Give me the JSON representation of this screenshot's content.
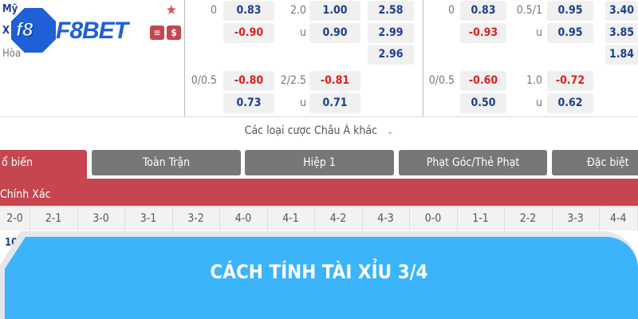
{
  "match": {
    "team1": "Mỹ",
    "team2": "X",
    "draw": "Hòa"
  },
  "logo": {
    "text": "F8BET",
    "badge": "f8"
  },
  "icons": {
    "star": "star-icon",
    "s_badge": "s-badge-icon",
    "dollar": "dollar-icon"
  },
  "odds": {
    "ft_hdp": {
      "line1": "0",
      "home1": "0.83",
      "away1": "-0.90",
      "line2": "0/0.5",
      "home2": "-0.80",
      "away2": "0.73"
    },
    "ft_ou": {
      "line1": "2.0",
      "over1": "1.00",
      "u1": "u",
      "under1": "0.90",
      "line2": "2/2.5",
      "over2": "-0.81",
      "u2": "u",
      "under2": "0.71"
    },
    "ft_1x2": {
      "home": "2.58",
      "away": "2.99",
      "draw": "2.96"
    },
    "h1_hdp": {
      "line1": "0",
      "home1": "0.83",
      "away1": "-0.93",
      "line2": "0/0.5",
      "home2": "-0.60",
      "away2": "0.50"
    },
    "h1_ou": {
      "line1": "0.5/1",
      "over1": "0.95",
      "u1": "u",
      "under1": "0.95",
      "line2": "1.0",
      "over2": "-0.72",
      "u2": "u",
      "under2": "0.62"
    },
    "h1_1x2": {
      "home": "3.40",
      "away": "3.85",
      "draw": "1.84"
    }
  },
  "more_asian": "Các loại cược Châu Á khác",
  "tabs": [
    "ổ biến",
    "Toàn Trận",
    "Hiệp 1",
    "Phạt Góc/Thẻ Phạt",
    "Đặc biệt"
  ],
  "section_title": "Chính Xác",
  "scores": [
    "2-0",
    "2-1",
    "3-0",
    "3-1",
    "3-2",
    "4-0",
    "4-1",
    "4-2",
    "4-3",
    "0-0",
    "1-1",
    "2-2",
    "3-3",
    "4-4"
  ],
  "first_value": "10",
  "banner": {
    "title": "CÁCH TÍNH TÀI XỈU 3/4",
    "color": "#3bb4fb"
  }
}
